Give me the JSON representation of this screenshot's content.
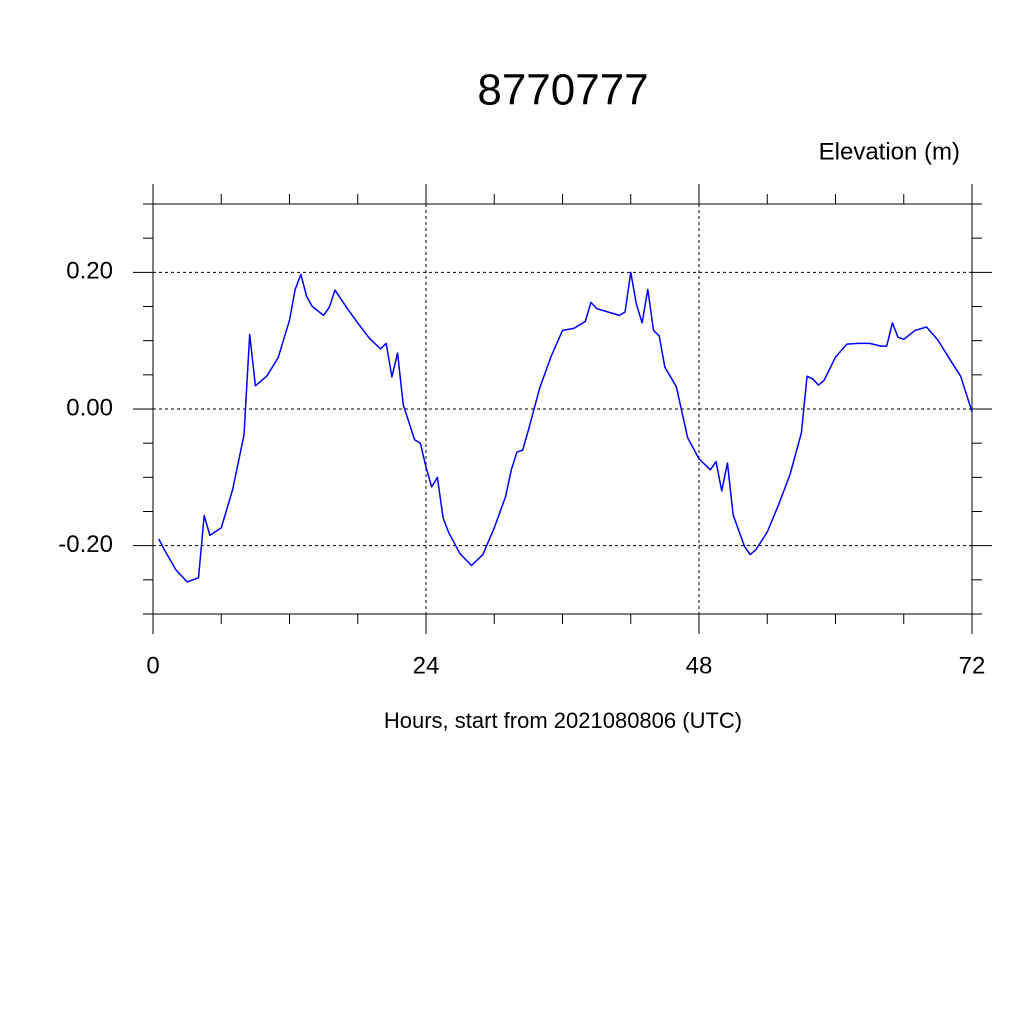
{
  "chart_data": {
    "type": "line",
    "title": "8770777",
    "subtitle": "Elevation (m)",
    "x_label": "Hours, start from 2021080806 (UTC)",
    "color": "#0000ff",
    "grid": true,
    "x": [
      0.5,
      1,
      2,
      3,
      4,
      4.5,
      5,
      6,
      7,
      8,
      8.5,
      9,
      10,
      11,
      12,
      12.5,
      13,
      13.5,
      14,
      15,
      15.5,
      16,
      17,
      18,
      19,
      20,
      20.5,
      21,
      21.5,
      22,
      23,
      23.5,
      24,
      24.5,
      25,
      25.5,
      26,
      27,
      28,
      29,
      30,
      31,
      31.5,
      32,
      32.5,
      33,
      34,
      35,
      36,
      37,
      37.5,
      38,
      38.5,
      39,
      40,
      41,
      41.5,
      42,
      42.5,
      43,
      43.5,
      44,
      44.5,
      45,
      46,
      47,
      48,
      49,
      49.5,
      50,
      50.5,
      51,
      52,
      52.5,
      53,
      54,
      55,
      56,
      57,
      57.5,
      58,
      58.5,
      59,
      60,
      61,
      62,
      63,
      64,
      64.5,
      65,
      65.5,
      66,
      67,
      68,
      69,
      70,
      71,
      72
    ],
    "values": [
      -0.19,
      -0.206,
      -0.235,
      -0.253,
      -0.247,
      -0.156,
      -0.185,
      -0.174,
      -0.118,
      -0.038,
      0.109,
      0.034,
      0.048,
      0.075,
      0.13,
      0.175,
      0.197,
      0.165,
      0.15,
      0.137,
      0.149,
      0.174,
      0.149,
      0.126,
      0.104,
      0.088,
      0.096,
      0.047,
      0.082,
      0.006,
      -0.045,
      -0.05,
      -0.085,
      -0.114,
      -0.1,
      -0.159,
      -0.181,
      -0.212,
      -0.229,
      -0.213,
      -0.174,
      -0.128,
      -0.089,
      -0.063,
      -0.06,
      -0.031,
      0.031,
      0.077,
      0.115,
      0.118,
      0.123,
      0.128,
      0.156,
      0.147,
      0.142,
      0.137,
      0.142,
      0.2,
      0.153,
      0.126,
      0.175,
      0.115,
      0.107,
      0.061,
      0.033,
      -0.042,
      -0.073,
      -0.089,
      -0.077,
      -0.12,
      -0.079,
      -0.155,
      -0.201,
      -0.213,
      -0.206,
      -0.18,
      -0.14,
      -0.096,
      -0.035,
      0.048,
      0.044,
      0.035,
      0.042,
      0.076,
      0.095,
      0.096,
      0.096,
      0.092,
      0.092,
      0.126,
      0.105,
      0.102,
      0.115,
      0.12,
      0.101,
      0.074,
      0.048,
      -0.004
    ],
    "xlim": [
      0,
      72
    ],
    "ylim": [
      -0.3,
      0.3
    ],
    "xticks": [
      0,
      24,
      48,
      72
    ],
    "yticks": [
      {
        "value": -0.2,
        "label": "-0.20"
      },
      {
        "value": 0,
        "label": "0.00"
      },
      {
        "value": 0.2,
        "label": "0.20"
      }
    ],
    "xminorticks": [
      6,
      12,
      18,
      30,
      36,
      42,
      54,
      60,
      66
    ],
    "yminorticks": [
      -0.3,
      -0.25,
      -0.15,
      -0.1,
      -0.05,
      0.05,
      0.1,
      0.15,
      0.25,
      0.3
    ]
  }
}
